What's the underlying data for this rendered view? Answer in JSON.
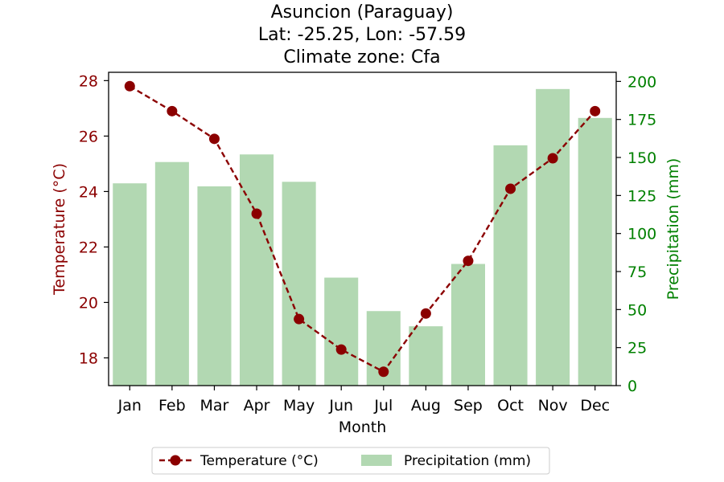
{
  "chart_data": {
    "type": "bar",
    "title_lines": [
      "Asuncion (Paraguay)",
      "Lat: -25.25, Lon: -57.59",
      "Climate zone: Cfa"
    ],
    "xlabel": "Month",
    "categories": [
      "Jan",
      "Feb",
      "Mar",
      "Apr",
      "May",
      "Jun",
      "Jul",
      "Aug",
      "Sep",
      "Oct",
      "Nov",
      "Dec"
    ],
    "series": [
      {
        "name": "Precipitation (mm)",
        "type": "bar",
        "axis": "right",
        "color": "#b2d8b2",
        "values": [
          133,
          147,
          131,
          152,
          134,
          71,
          49,
          39,
          80,
          158,
          195,
          176
        ]
      },
      {
        "name": "Temperature (°C)",
        "type": "line",
        "axis": "left",
        "color": "#8b0000",
        "line_style": "dashed",
        "marker": "circle",
        "values": [
          27.8,
          26.9,
          25.9,
          23.2,
          19.4,
          18.3,
          17.5,
          19.6,
          21.5,
          24.1,
          25.2,
          26.9
        ]
      }
    ],
    "y_left": {
      "label": "Temperature (°C)",
      "color": "#8b0000",
      "range": [
        17,
        28.3
      ],
      "ticks": [
        18,
        20,
        22,
        24,
        26,
        28
      ]
    },
    "y_right": {
      "label": "Precipitation (mm)",
      "color": "#008000",
      "range": [
        0,
        206
      ],
      "ticks": [
        0,
        25,
        50,
        75,
        100,
        125,
        150,
        175,
        200
      ]
    },
    "grid": false,
    "legend": {
      "position": "bottom-center",
      "entries": [
        "Temperature (°C)",
        "Precipitation (mm)"
      ]
    }
  }
}
